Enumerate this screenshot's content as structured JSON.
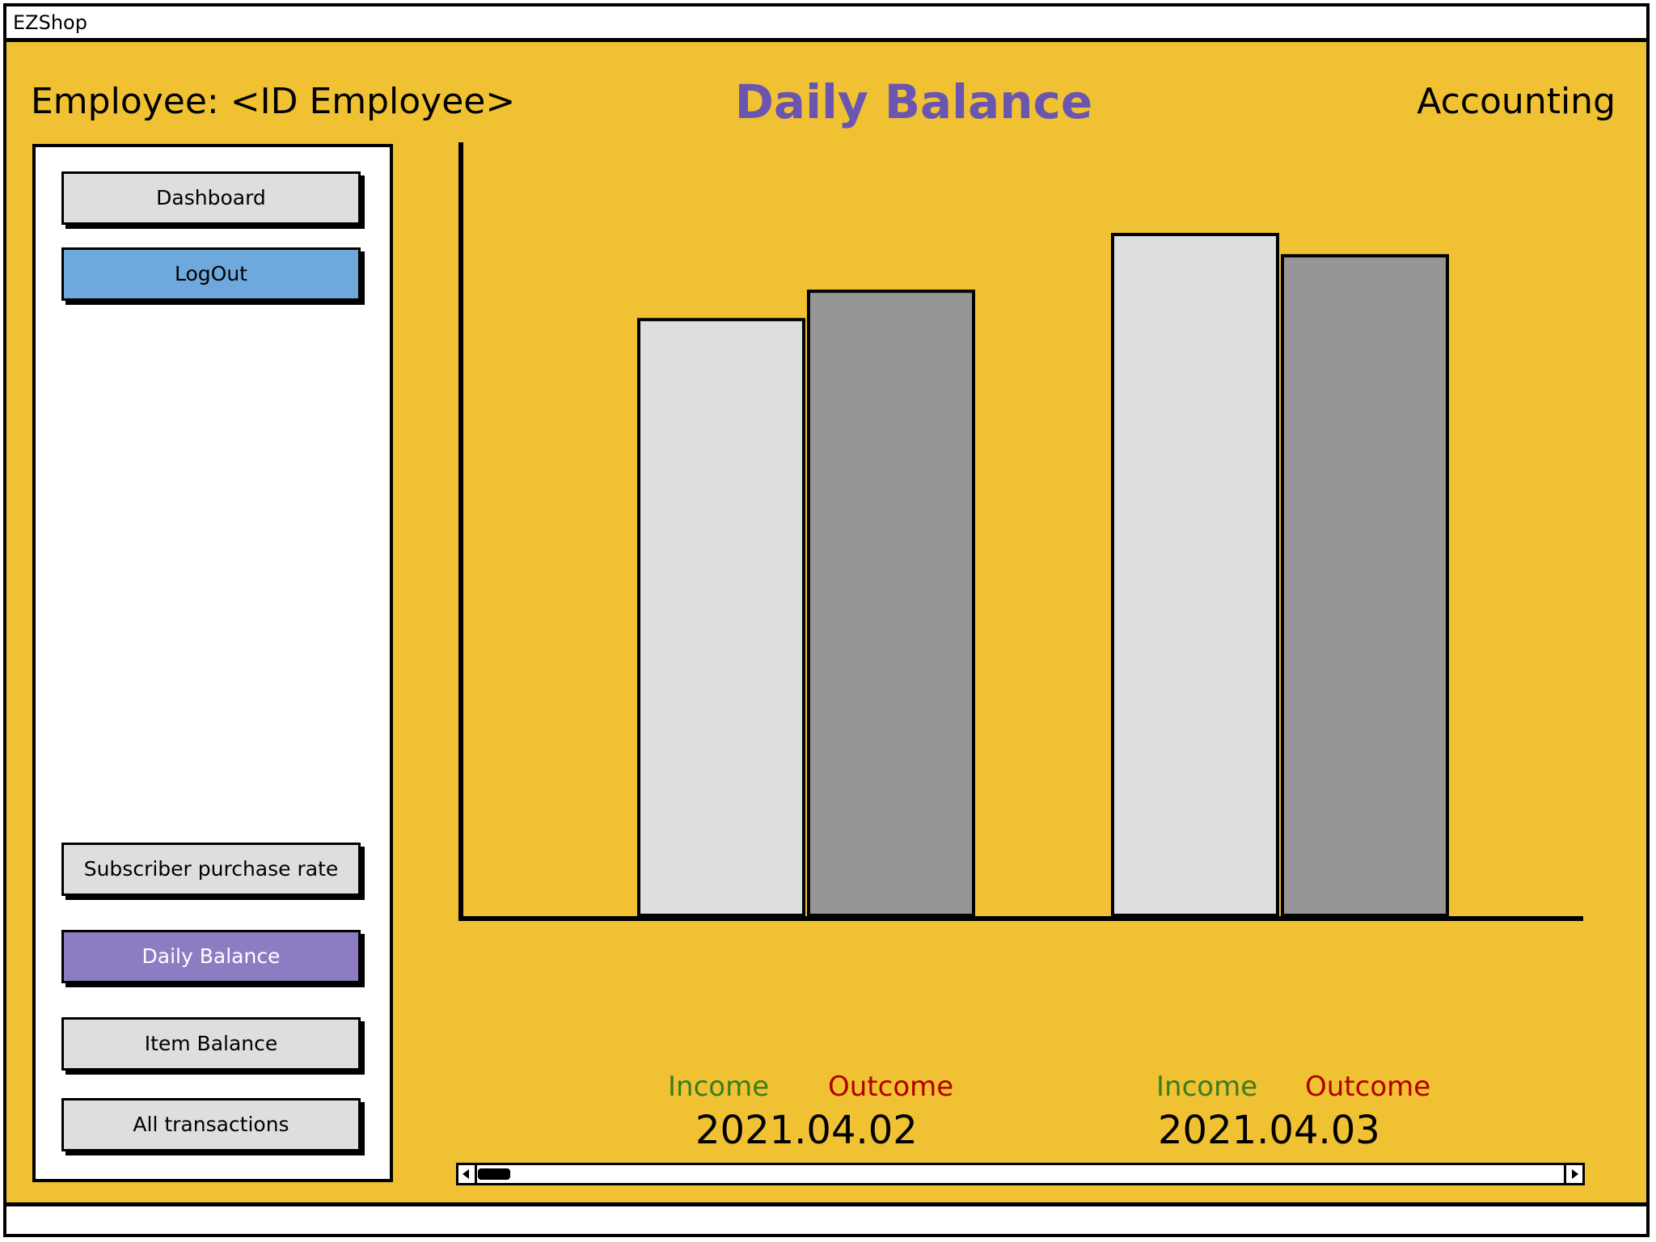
{
  "window": {
    "title": "EZShop"
  },
  "header": {
    "employee": "Employee: <ID Employee>",
    "page_title": "Daily Balance",
    "section": "Accounting"
  },
  "sidebar": {
    "top_buttons": [
      "Dashboard",
      "LogOut"
    ],
    "bottom_buttons": [
      "Subscriber purchase rate",
      "Daily Balance",
      "Item Balance",
      "All transactions"
    ],
    "active": "Daily Balance"
  },
  "colors": {
    "background": "#f0c132",
    "title": "#6a55b0",
    "logout": "#6fa8dc",
    "active_button": "#8e7cc3",
    "income_bar": "#dedede",
    "outcome_bar": "#969696",
    "income_label": "#3b7d1c",
    "outcome_label": "#b00000"
  },
  "chart_data": {
    "type": "bar",
    "categories": [
      "2021.04.02",
      "2021.04.03"
    ],
    "series": [
      {
        "name": "Income",
        "values": [
          0.84,
          0.96
        ]
      },
      {
        "name": "Outcome",
        "values": [
          0.88,
          0.93
        ]
      }
    ],
    "series_labels": [
      "Income",
      "Outcome",
      "Income",
      "Outcome"
    ],
    "ylim": [
      0,
      1.09
    ],
    "grid": false,
    "legend": "none"
  }
}
